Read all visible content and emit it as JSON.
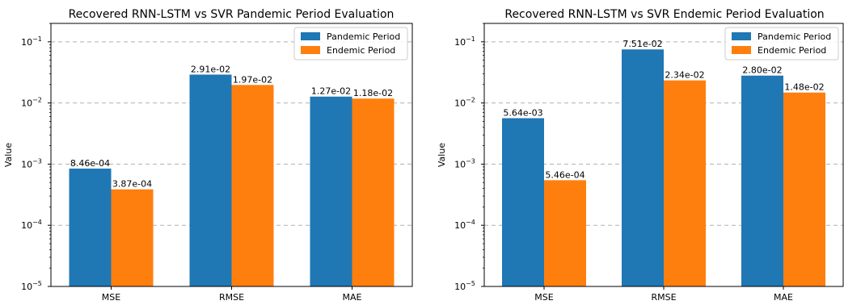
{
  "chart_data": [
    {
      "type": "bar",
      "title": "Recovered RNN-LSTM vs SVR Pandemic Period Evaluation",
      "xlabel": "",
      "ylabel": "Value",
      "yscale": "log",
      "ylim": [
        1e-05,
        0.2
      ],
      "grid": "y-major-dashed",
      "legend_position": "upper-right",
      "categories": [
        "MSE",
        "RMSE",
        "MAE"
      ],
      "y_ticks": [
        {
          "value": 1e-05,
          "base": "10",
          "exp": "−5"
        },
        {
          "value": 0.0001,
          "base": "10",
          "exp": "−4"
        },
        {
          "value": 0.001,
          "base": "10",
          "exp": "−3"
        },
        {
          "value": 0.01,
          "base": "10",
          "exp": "−2"
        },
        {
          "value": 0.1,
          "base": "10",
          "exp": "−1"
        }
      ],
      "series": [
        {
          "name": "Pandemic Period",
          "color": "#1f77b4",
          "values": [
            0.000846,
            0.0291,
            0.0127
          ],
          "labels": [
            "8.46e-04",
            "2.91e-02",
            "1.27e-02"
          ]
        },
        {
          "name": "Endemic Period",
          "color": "#ff7f0e",
          "values": [
            0.000387,
            0.0197,
            0.0118
          ],
          "labels": [
            "3.87e-04",
            "1.97e-02",
            "1.18e-02"
          ]
        }
      ]
    },
    {
      "type": "bar",
      "title": "Recovered RNN-LSTM vs SVR Endemic Period Evaluation",
      "xlabel": "",
      "ylabel": "Value",
      "yscale": "log",
      "ylim": [
        1e-05,
        0.2
      ],
      "grid": "y-major-dashed",
      "legend_position": "upper-right",
      "categories": [
        "MSE",
        "RMSE",
        "MAE"
      ],
      "y_ticks": [
        {
          "value": 1e-05,
          "base": "10",
          "exp": "−5"
        },
        {
          "value": 0.0001,
          "base": "10",
          "exp": "−4"
        },
        {
          "value": 0.001,
          "base": "10",
          "exp": "−3"
        },
        {
          "value": 0.01,
          "base": "10",
          "exp": "−2"
        },
        {
          "value": 0.1,
          "base": "10",
          "exp": "−1"
        }
      ],
      "series": [
        {
          "name": "Pandemic Period",
          "color": "#1f77b4",
          "values": [
            0.00564,
            0.0751,
            0.028
          ],
          "labels": [
            "5.64e-03",
            "7.51e-02",
            "2.80e-02"
          ]
        },
        {
          "name": "Endemic Period",
          "color": "#ff7f0e",
          "values": [
            0.000546,
            0.0234,
            0.0148
          ],
          "labels": [
            "5.46e-04",
            "2.34e-02",
            "1.48e-02"
          ]
        }
      ]
    }
  ]
}
